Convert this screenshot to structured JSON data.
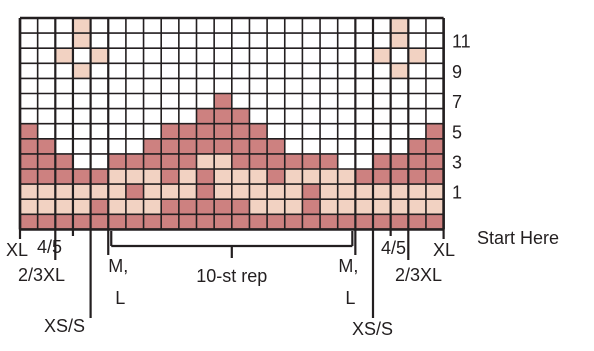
{
  "chart_data": {
    "type": "colorwork-chart",
    "colors": {
      "background": "#ffffff",
      "light": "#f2d2c2",
      "dark": "#cd8180",
      "grid": "#231f20"
    },
    "legend_key": {
      "0": "background",
      "1": "light",
      "2": "dark"
    },
    "grid_rows": [
      "000300000000000000000300",
      "000100000000000000000100",
      "001010000000000000001010",
      "000100000000000000000100",
      "000000000000000000000000",
      "000000000002000000000000",
      "000000000022200000000000",
      "200000002222220000000002",
      "220000022222222000000022",
      "222002222211222222002222",
      "222221112121112111122222",
      "111111211121111121111111",
      "111121112222211121111111",
      "222222222222222222222222"
    ],
    "row_numbers": [
      "11",
      "9",
      "7",
      "5",
      "3",
      "1"
    ],
    "start_label": "Start Here",
    "repeat_label": "10-st rep",
    "size_labels": {
      "left": [
        "XL",
        "2/3XL",
        "4/5",
        "XS/S"
      ],
      "right": [
        "XS/S",
        "4/5",
        "2/3XL",
        "XL"
      ],
      "medium_large": "M,\nL"
    }
  }
}
